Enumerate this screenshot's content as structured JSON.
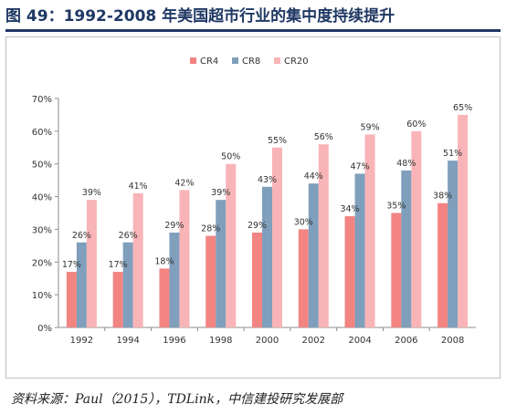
{
  "figure": {
    "title": "图 49：1992-2008 年美国超市行业的集中度持续提升",
    "source": "资料来源：Paul（2015），TDLink，中信建投研究发展部"
  },
  "chart_data": {
    "type": "bar",
    "categories": [
      "1992",
      "1994",
      "1996",
      "1998",
      "2000",
      "2002",
      "2004",
      "2006",
      "2008"
    ],
    "series": [
      {
        "name": "CR4",
        "color": "#f28482",
        "values": [
          17,
          17,
          18,
          28,
          29,
          30,
          34,
          35,
          38
        ]
      },
      {
        "name": "CR8",
        "color": "#7f9fbc",
        "values": [
          26,
          26,
          29,
          39,
          43,
          44,
          47,
          48,
          51
        ]
      },
      {
        "name": "CR20",
        "color": "#f9b4b7",
        "values": [
          39,
          41,
          42,
          50,
          55,
          56,
          59,
          60,
          65
        ]
      }
    ],
    "y_ticks": [
      "0%",
      "10%",
      "20%",
      "30%",
      "40%",
      "50%",
      "60%",
      "70%"
    ],
    "ylim": [
      0,
      70
    ],
    "value_suffix": "%",
    "legend_position": "top",
    "grid": false
  }
}
